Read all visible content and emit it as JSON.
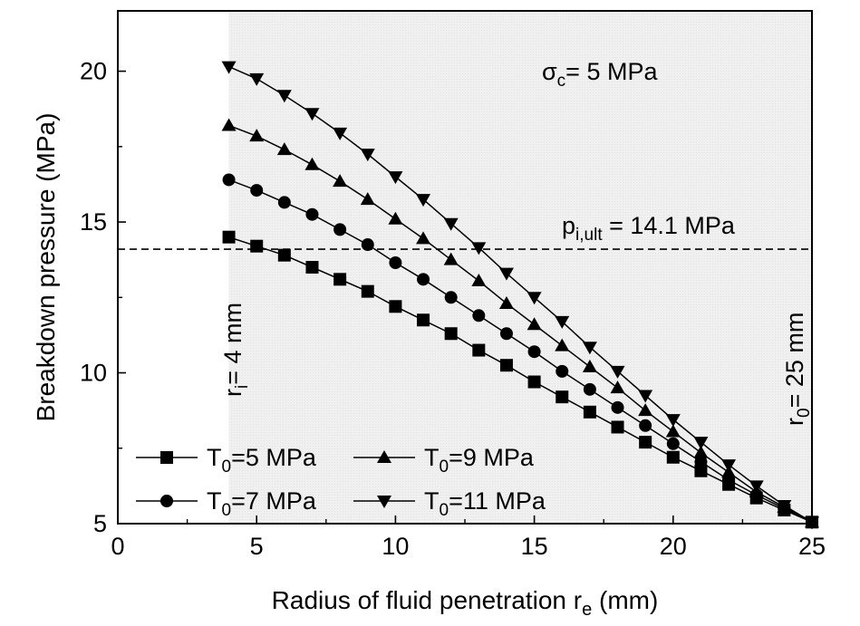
{
  "chart_data": {
    "type": "line",
    "title": "",
    "xlabel": {
      "main": "Radius of fluid penetration r",
      "sub": "e",
      "unit": " (mm)"
    },
    "ylabel": "Breakdown pressure (MPa)",
    "xlim": [
      0,
      25
    ],
    "ylim": [
      5,
      22
    ],
    "xticks": [
      "0",
      "5",
      "10",
      "15",
      "20",
      "25"
    ],
    "yticks": [
      "5",
      "10",
      "15",
      "20"
    ],
    "shaded_region": {
      "x_from": 4,
      "x_to": 25
    },
    "reference_line": {
      "y": 14.1,
      "style": "dashed"
    },
    "annotations": {
      "sigma": {
        "main": "σ",
        "sub": "c",
        "rest": "= 5 MPa"
      },
      "p_ult": {
        "main": "p",
        "sub": "i,ult",
        "rest": " = 14.1 MPa"
      },
      "ri": {
        "main": "r",
        "sub": "i",
        "rest": "= 4 mm"
      },
      "r0": {
        "main": "r",
        "sub": "0",
        "rest": "= 25 mm"
      }
    },
    "x": [
      4,
      5,
      6,
      7,
      8,
      9,
      10,
      11,
      12,
      13,
      14,
      15,
      16,
      17,
      18,
      19,
      20,
      21,
      22,
      23,
      24,
      25
    ],
    "series": [
      {
        "name": {
          "main": "T",
          "sub": "0",
          "rest": "=5 MPa"
        },
        "marker": "square",
        "values": [
          14.5,
          14.2,
          13.9,
          13.5,
          13.1,
          12.7,
          12.2,
          11.75,
          11.3,
          10.75,
          10.25,
          9.7,
          9.2,
          8.7,
          8.2,
          7.7,
          7.2,
          6.75,
          6.3,
          5.85,
          5.45,
          5.05
        ]
      },
      {
        "name": {
          "main": "T",
          "sub": "0",
          "rest": "=7 MPa"
        },
        "marker": "circle",
        "values": [
          16.4,
          16.05,
          15.65,
          15.25,
          14.75,
          14.25,
          13.65,
          13.1,
          12.5,
          11.9,
          11.3,
          10.7,
          10.05,
          9.45,
          8.85,
          8.25,
          7.65,
          7.05,
          6.45,
          5.95,
          5.5,
          5.05
        ]
      },
      {
        "name": {
          "main": "T",
          "sub": "0",
          "rest": "=9 MPa"
        },
        "marker": "triangle-up",
        "values": [
          18.2,
          17.85,
          17.4,
          16.9,
          16.35,
          15.75,
          15.1,
          14.45,
          13.75,
          13.05,
          12.3,
          11.6,
          10.9,
          10.2,
          9.5,
          8.75,
          8.05,
          7.35,
          6.7,
          6.05,
          5.55,
          5.05
        ]
      },
      {
        "name": {
          "main": "T",
          "sub": "0",
          "rest": "=11 MPa"
        },
        "marker": "triangle-down",
        "values": [
          20.15,
          19.75,
          19.2,
          18.6,
          17.95,
          17.25,
          16.5,
          15.75,
          14.95,
          14.15,
          13.3,
          12.5,
          11.7,
          10.85,
          10.05,
          9.25,
          8.45,
          7.7,
          6.95,
          6.25,
          5.6,
          5.05
        ]
      }
    ],
    "legend_position": "bottom-left"
  }
}
